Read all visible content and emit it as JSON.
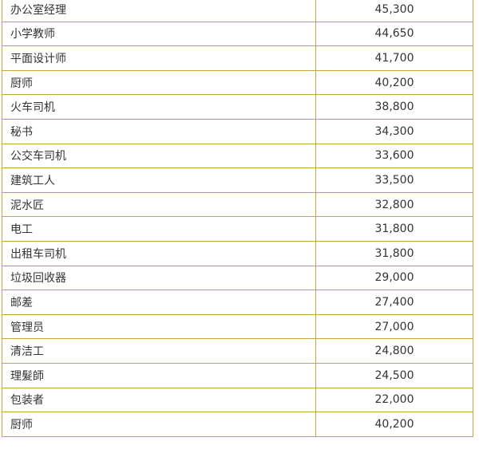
{
  "rows": [
    {
      "job": "办公室经理",
      "salary": "45,300"
    },
    {
      "job": "小学教师",
      "salary": "44,650"
    },
    {
      "job": "平面设计师",
      "salary": "41,700"
    },
    {
      "job": "厨师",
      "salary": "40,200"
    },
    {
      "job": "火车司机",
      "salary": "38,800"
    },
    {
      "job": "秘书",
      "salary": "34,300"
    },
    {
      "job": "公交车司机",
      "salary": "33,600"
    },
    {
      "job": "建筑工人",
      "salary": "33,500"
    },
    {
      "job": "泥水匠",
      "salary": "32,800"
    },
    {
      "job": "电工",
      "salary": "31,800"
    },
    {
      "job": "出租车司机",
      "salary": "31,800"
    },
    {
      "job": "垃圾回收器",
      "salary": "29,000"
    },
    {
      "job": "邮差",
      "salary": "27,400"
    },
    {
      "job": "管理员",
      "salary": "27,000"
    },
    {
      "job": "清洁工",
      "salary": "24,800"
    },
    {
      "job": "理髮師",
      "salary": "24,500"
    },
    {
      "job": "包装者",
      "salary": "22,000"
    },
    {
      "job": "厨师",
      "salary": "40,200"
    }
  ]
}
